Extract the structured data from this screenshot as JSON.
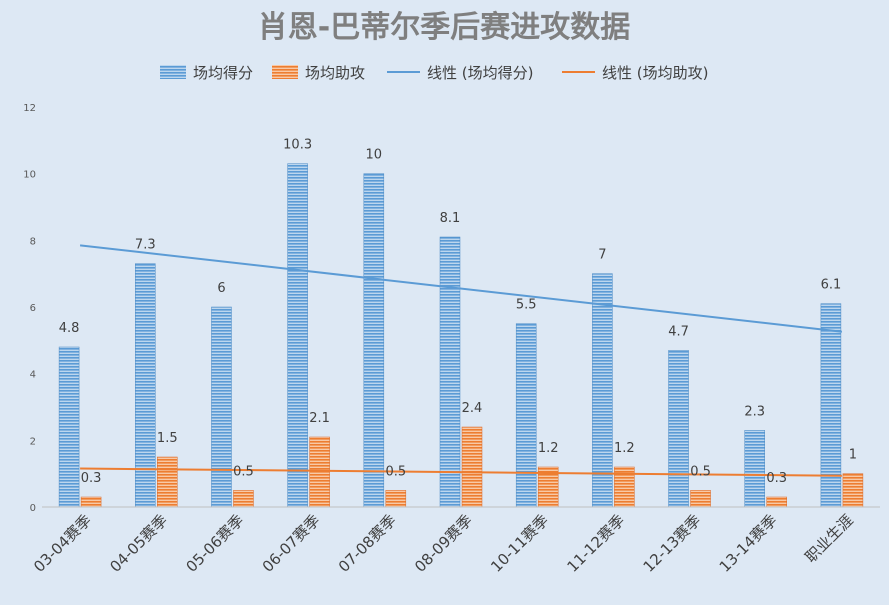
{
  "colors": {
    "points_bar": "#5b9bd5",
    "assists_bar": "#ed7d31",
    "points_trend": "#5b9bd5",
    "assists_trend": "#ed7d31",
    "background": "#dde8f4"
  },
  "chart_data": {
    "type": "bar",
    "title": "肖恩-巴蒂尔季后赛进攻数据",
    "xlabel": "",
    "ylabel": "",
    "ylim": [
      0,
      12
    ],
    "yticks": [
      0,
      2,
      4,
      6,
      8,
      10,
      12
    ],
    "grid": false,
    "legend_position": "top",
    "categories": [
      "03-04赛季",
      "04-05赛季",
      "05-06赛季",
      "06-07赛季",
      "07-08赛季",
      "08-09赛季",
      "10-11赛季",
      "11-12赛季",
      "12-13赛季",
      "13-14赛季",
      "职业生涯"
    ],
    "series": [
      {
        "name": "场均得分",
        "values": [
          4.8,
          7.3,
          6,
          10.3,
          10,
          8.1,
          5.5,
          7,
          4.7,
          2.3,
          6.1
        ]
      },
      {
        "name": "场均助攻",
        "values": [
          0.3,
          1.5,
          0.5,
          2.1,
          0.5,
          2.4,
          1.2,
          1.2,
          0.5,
          0.3,
          1
        ]
      }
    ],
    "trendlines": [
      {
        "name": "线性 (场均得分)",
        "of_series": "场均得分",
        "type": "linear"
      },
      {
        "name": "线性 (场均助攻)",
        "of_series": "场均助攻",
        "type": "linear"
      }
    ]
  }
}
